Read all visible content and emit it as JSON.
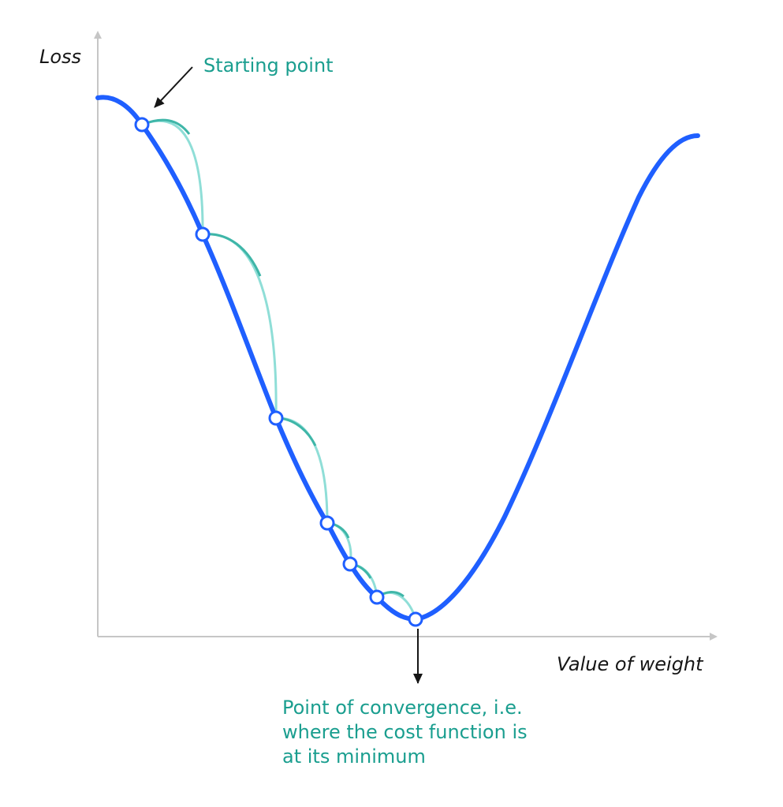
{
  "labels": {
    "y_axis": "Loss",
    "x_axis": "Value of weight",
    "start": "Starting point",
    "convergence_lines": [
      "Point of convergence, i.e.",
      "where the cost function is",
      "at its minimum"
    ]
  },
  "colors": {
    "curve": "#1f5fff",
    "step_arc": "#8fded7",
    "step_arc_dark": "#3fb6a8",
    "axis": "#c6c6c6",
    "annotation_text": "#1a9e8f",
    "pointer": "#161616"
  }
}
